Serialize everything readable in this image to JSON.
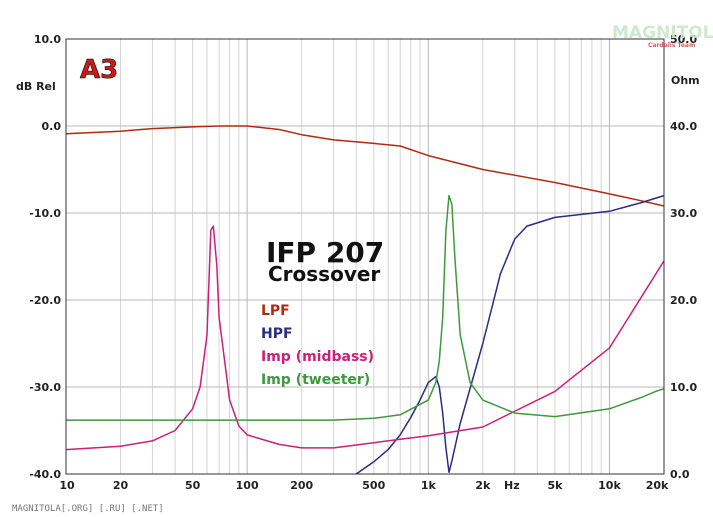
{
  "chart_data": {
    "type": "line",
    "title": "IFP 207",
    "subtitle": "Crossover",
    "badge": "A3",
    "footer": "MAGNITOLA[.ORG] [.RU] [.NET]",
    "watermark": "MAGNITOLA",
    "watermark_sub": "Cardalis Team",
    "x_scale": "log",
    "xlim": [
      10,
      20000
    ],
    "x_ticks": [
      10,
      20,
      50,
      100,
      200,
      500,
      1000,
      2000,
      5000,
      10000,
      20000
    ],
    "x_tick_labels": [
      "10",
      "20",
      "50",
      "100",
      "200",
      "500",
      "1k",
      "2k",
      "5k",
      "10k",
      "20k"
    ],
    "x_unit": "Hz",
    "y_left": {
      "label": "dB Rel",
      "lim": [
        -40,
        10
      ],
      "ticks": [
        10,
        0,
        -10,
        -20,
        -30,
        -40
      ],
      "tick_labels": [
        "10.0",
        "0.0",
        "-10.0",
        "-20.0",
        "-30.0",
        "-40.0"
      ]
    },
    "y_right": {
      "label": "Ohm",
      "lim": [
        0,
        50
      ],
      "ticks": [
        50,
        40,
        30,
        20,
        10,
        0
      ],
      "tick_labels": [
        "50.0",
        "40.0",
        "30.0",
        "20.0",
        "10.0",
        "0.0"
      ]
    },
    "grid": true,
    "series": [
      {
        "name": "LPF",
        "color": "#b22a12",
        "axis": "left",
        "points": [
          [
            10,
            -0.9
          ],
          [
            20,
            -0.6
          ],
          [
            30,
            -0.3
          ],
          [
            50,
            -0.1
          ],
          [
            70,
            0.0
          ],
          [
            100,
            0.0
          ],
          [
            150,
            -0.4
          ],
          [
            200,
            -1.0
          ],
          [
            300,
            -1.6
          ],
          [
            500,
            -2.0
          ],
          [
            700,
            -2.3
          ],
          [
            1000,
            -3.4
          ],
          [
            2000,
            -5.0
          ],
          [
            5000,
            -6.5
          ],
          [
            10000,
            -7.8
          ],
          [
            15000,
            -8.6
          ],
          [
            20000,
            -9.2
          ]
        ]
      },
      {
        "name": "HPF",
        "color": "#2b2b84",
        "axis": "left",
        "points": [
          [
            400,
            -40
          ],
          [
            500,
            -38.6
          ],
          [
            600,
            -37.2
          ],
          [
            700,
            -35.5
          ],
          [
            800,
            -33.5
          ],
          [
            900,
            -31.5
          ],
          [
            1000,
            -29.5
          ],
          [
            1100,
            -28.8
          ],
          [
            1150,
            -30
          ],
          [
            1200,
            -33
          ],
          [
            1250,
            -37
          ],
          [
            1300,
            -39.8
          ],
          [
            1350,
            -38.5
          ],
          [
            1500,
            -34.2
          ],
          [
            2000,
            -25
          ],
          [
            2500,
            -17
          ],
          [
            3000,
            -13
          ],
          [
            3500,
            -11.5
          ],
          [
            5000,
            -10.5
          ],
          [
            10000,
            -9.8
          ],
          [
            15000,
            -8.8
          ],
          [
            20000,
            -8.0
          ]
        ]
      },
      {
        "name": "Imp (midbass)",
        "color": "#cc1f7a",
        "axis": "right",
        "points": [
          [
            10,
            2.8
          ],
          [
            20,
            3.2
          ],
          [
            30,
            3.8
          ],
          [
            40,
            5.0
          ],
          [
            50,
            7.5
          ],
          [
            55,
            10
          ],
          [
            60,
            16
          ],
          [
            63,
            28
          ],
          [
            65,
            28.5
          ],
          [
            68,
            24
          ],
          [
            70,
            18
          ],
          [
            80,
            8.5
          ],
          [
            90,
            5.5
          ],
          [
            100,
            4.5
          ],
          [
            150,
            3.4
          ],
          [
            200,
            3.0
          ],
          [
            300,
            3.0
          ],
          [
            500,
            3.6
          ],
          [
            700,
            4.0
          ],
          [
            1000,
            4.4
          ],
          [
            2000,
            5.4
          ],
          [
            5000,
            9.5
          ],
          [
            10000,
            14.5
          ],
          [
            20000,
            24.5
          ]
        ]
      },
      {
        "name": "Imp (tweeter)",
        "color": "#3d9a3d",
        "axis": "right",
        "points": [
          [
            10,
            6.2
          ],
          [
            100,
            6.2
          ],
          [
            300,
            6.2
          ],
          [
            500,
            6.4
          ],
          [
            700,
            6.8
          ],
          [
            1000,
            8.5
          ],
          [
            1100,
            10.5
          ],
          [
            1150,
            13
          ],
          [
            1200,
            18
          ],
          [
            1250,
            28
          ],
          [
            1300,
            32
          ],
          [
            1350,
            31
          ],
          [
            1400,
            25
          ],
          [
            1500,
            16
          ],
          [
            1700,
            10.5
          ],
          [
            2000,
            8.5
          ],
          [
            3000,
            7.0
          ],
          [
            5000,
            6.6
          ],
          [
            10000,
            7.5
          ],
          [
            15000,
            8.8
          ],
          [
            18000,
            9.5
          ],
          [
            20000,
            9.8
          ]
        ]
      }
    ]
  }
}
